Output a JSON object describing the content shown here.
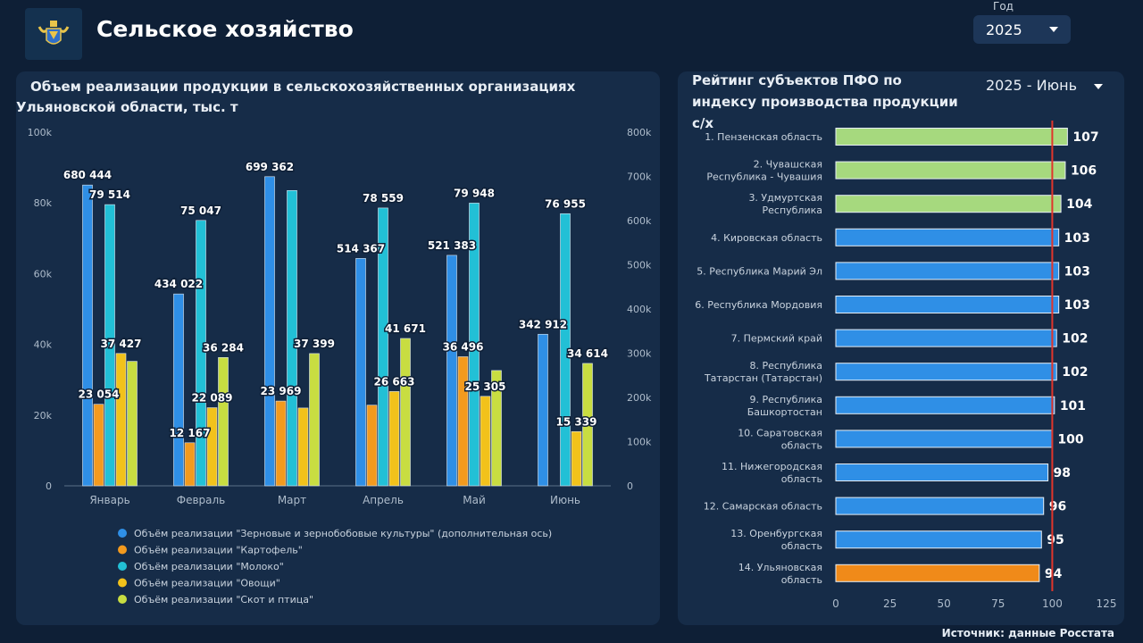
{
  "header": {
    "title": "Сельское хозяйство",
    "year_label": "Год",
    "year_value": "2025"
  },
  "left_panel": {
    "title": "Объем реализации продукции в сельскохозяйственных организациях Ульяновской области, тыс. т"
  },
  "right_panel": {
    "title": "Рейтинг субъектов ПФО по индексу производства продукции с/х",
    "period_value": "2025 - Июнь"
  },
  "footer": {
    "source": "Источник: данные Росстата"
  },
  "colors": {
    "background": "#0e1f36",
    "panel": "#162c48",
    "grain": "#2f8fe6",
    "potato": "#f39a1e",
    "milk": "#22c0d6",
    "vegetables": "#f2c21b",
    "livestock": "#c8dd41",
    "rank_top": "#a6d97e",
    "rank_mid": "#2f8fe6",
    "rank_own": "#f08a19",
    "ref_line": "#e0352b"
  },
  "chart_data": [
    {
      "type": "bar",
      "title": "Объем реализации продукции в сельскохозяйственных организациях Ульяновской области, тыс. т",
      "categories": [
        "Январь",
        "Февраль",
        "Март",
        "Апрель",
        "Май",
        "Июнь"
      ],
      "left_axis": {
        "ylim": [
          0,
          100000
        ],
        "ticks": [
          "0",
          "20k",
          "40k",
          "60k",
          "80k",
          "100k"
        ]
      },
      "right_axis": {
        "ylim": [
          0,
          800000
        ],
        "ticks": [
          "0",
          "100k",
          "200k",
          "300k",
          "400k",
          "500k",
          "600k",
          "700k",
          "800k"
        ]
      },
      "series": [
        {
          "name": "Объём реализации \"Зерновые и зернобобовые культуры\" (дополнительная ось)",
          "axis": "right",
          "color": "#2f8fe6",
          "values": [
            680444,
            434022,
            699362,
            514367,
            521383,
            342912
          ],
          "labels": [
            "680 444",
            "434 022",
            "699 362",
            "514 367",
            "521 383",
            "342 912"
          ]
        },
        {
          "name": "Объём реализации \"Картофель\"",
          "axis": "left",
          "color": "#f39a1e",
          "values": [
            23054,
            12167,
            23969,
            22800,
            36496,
            0
          ],
          "labels": [
            "23 054",
            "12 167",
            "23 969",
            "",
            "36 496",
            ""
          ]
        },
        {
          "name": "Объём реализации \"Молоко\"",
          "axis": "left",
          "color": "#22c0d6",
          "values": [
            79514,
            75047,
            83500,
            78559,
            79948,
            76955
          ],
          "labels": [
            "79 514",
            "75 047",
            "",
            "78 559",
            "79 948",
            "76 955"
          ]
        },
        {
          "name": "Объём реализации \"Овощи\"",
          "axis": "left",
          "color": "#f2c21b",
          "values": [
            37427,
            22089,
            22000,
            26663,
            25305,
            15339
          ],
          "labels": [
            "37 427",
            "22 089",
            "",
            "26 663",
            "25 305",
            "15 339"
          ]
        },
        {
          "name": "Объём реализации \"Скот и птица\"",
          "axis": "left",
          "color": "#c8dd41",
          "values": [
            35200,
            36284,
            37399,
            41671,
            32600,
            34614
          ],
          "labels": [
            "",
            "36 284",
            "37 399",
            "41 671",
            "",
            "34 614"
          ]
        }
      ]
    },
    {
      "type": "bar",
      "orientation": "horizontal",
      "title": "Рейтинг субъектов ПФО по индексу производства продукции с/х",
      "xlim": [
        0,
        125
      ],
      "xticks": [
        "0",
        "25",
        "50",
        "75",
        "100",
        "125"
      ],
      "reference_line": 100,
      "categories": [
        "1. Пензенская область",
        "2. Чувашская Республика - Чувашия",
        "3. Удмуртская Республика",
        "4. Кировская область",
        "5. Республика Марий Эл",
        "6. Республика Мордовия",
        "7. Пермский край",
        "8. Республика Татарстан (Татарстан)",
        "9. Республика Башкортостан",
        "10. Саратовская область",
        "11. Нижегородская область",
        "12. Самарская область",
        "13. Оренбургская область",
        "14. Ульяновская область"
      ],
      "values": [
        107,
        106,
        104,
        103,
        103,
        103,
        102,
        102,
        101,
        100,
        98,
        96,
        95,
        94
      ],
      "color_groups": [
        "top",
        "top",
        "top",
        "mid",
        "mid",
        "mid",
        "mid",
        "mid",
        "mid",
        "mid",
        "mid",
        "mid",
        "mid",
        "own"
      ]
    }
  ]
}
